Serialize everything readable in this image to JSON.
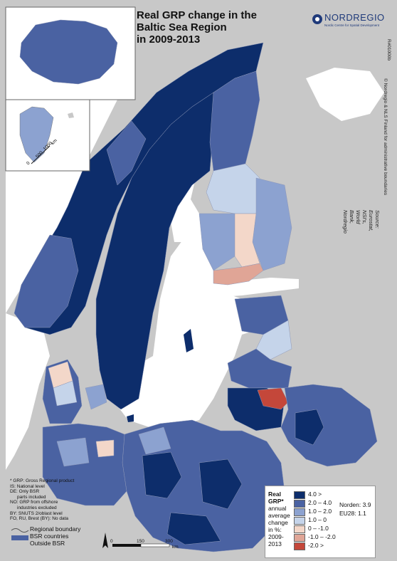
{
  "title": {
    "line1": "Real GRP change in the",
    "line2": "Baltic Sea Region",
    "line3": "in 2009-2013"
  },
  "brand": {
    "name": "NORDREGIO",
    "subtitle": "Nordic Centre for Spatial Development"
  },
  "map_id": "R#01000b",
  "copyright": "© Nordregio & NLS Finland for administrative boundaries",
  "source": {
    "line1": "Source: Eurostat, NSI's,",
    "line2": "World Bank, Nordregio"
  },
  "notes": [
    "* GRP: Gross Regional product",
    "IS: National level",
    "DE: Only BSR",
    "parts included",
    "NO: GRP from offshore",
    "industries excluded",
    "BY: SNUTS 2/oblast level",
    "FO, RU, Brest (BY): No data"
  ],
  "boundary_legend": [
    "Regional boundary",
    "BSR countries",
    "Outside BSR"
  ],
  "legend": {
    "title": [
      "Real",
      "GRP*",
      "annual",
      "average",
      "change",
      "in %:",
      "2009-",
      "2013"
    ],
    "classes": [
      {
        "label": "4.0 >",
        "color": "#0d2d6b"
      },
      {
        "label": "2.0 – 4.0",
        "color": "#4a62a2"
      },
      {
        "label": "1.0 – 2.0",
        "color": "#8ca2d0"
      },
      {
        "label": "1.0 – 0",
        "color": "#c5d4ea"
      },
      {
        "label": "0   – -1.0",
        "color": "#f3d7c9"
      },
      {
        "label": "-1.0 – -2.0",
        "color": "#e0a596"
      },
      {
        "label": "-2.0 >",
        "color": "#c4473a"
      }
    ],
    "averages": [
      "Norden: 3.9",
      "EU28: 1.1"
    ]
  },
  "scale_bar": {
    "ticks": [
      "0",
      "150",
      "300"
    ],
    "unit": "km"
  },
  "greenland_scale": {
    "ticks": [
      "0",
      "500",
      "1000"
    ],
    "unit": "km"
  },
  "colors": {
    "sea": "#ffffff",
    "outside_bsr": "#c8c8c8",
    "boundary": "#8e98b8"
  }
}
